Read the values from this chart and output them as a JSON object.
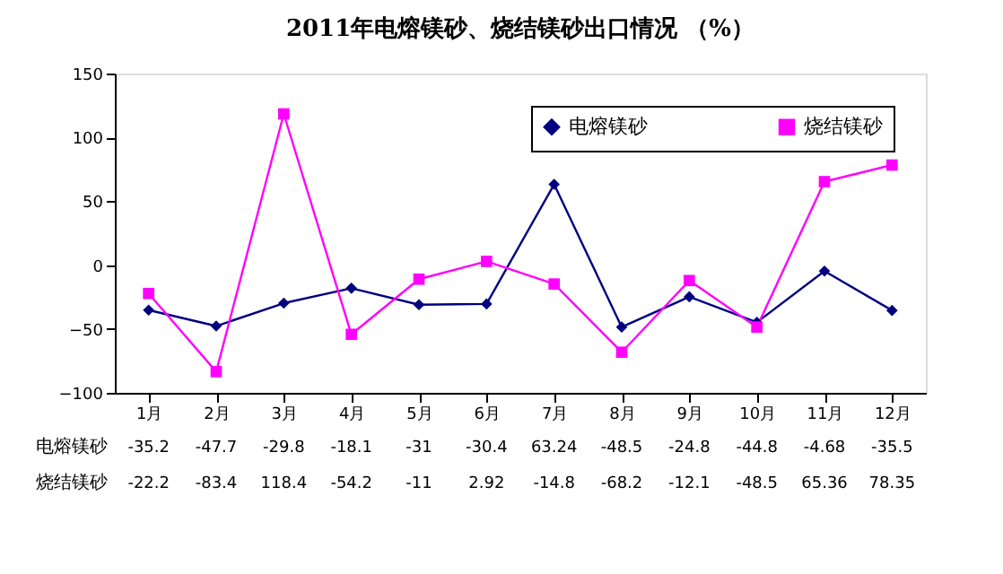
{
  "chart_data": {
    "type": "line",
    "title": "2011年电熔镁砂、烧结镁砂出口情况    （%）",
    "categories": [
      "1月",
      "2月",
      "3月",
      "4月",
      "5月",
      "6月",
      "7月",
      "8月",
      "9月",
      "10月",
      "11月",
      "12月"
    ],
    "series": [
      {
        "name": "电熔镁砂",
        "color": "#000080",
        "marker": "diamond",
        "values": [
          -35.2,
          -47.7,
          -29.8,
          -18.1,
          -31,
          -30.4,
          63.24,
          -48.5,
          -24.8,
          -44.8,
          -4.68,
          -35.5
        ]
      },
      {
        "name": "烧结镁砂",
        "color": "#ff00ff",
        "marker": "square",
        "values": [
          -22.2,
          -83.4,
          118.4,
          -54.2,
          -11,
          2.92,
          -14.8,
          -68.2,
          -12.1,
          -48.5,
          65.36,
          78.35
        ]
      }
    ],
    "ylim": [
      -100,
      150
    ],
    "yticks": [
      -100,
      -50,
      0,
      50,
      100,
      150
    ],
    "grid": false,
    "legend": "top right",
    "data_labels": true
  }
}
